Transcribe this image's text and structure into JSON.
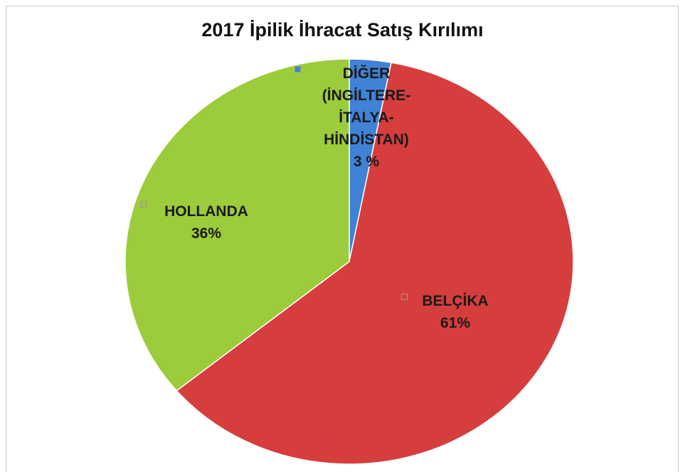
{
  "chart_data": {
    "type": "pie",
    "title": "2017 İpilik İhracat Satış Kırılımı",
    "categories": [
      "DİĞER (İNGİLTERE-İTALYA-HİNDİSTAN)",
      "BELÇİKA",
      "HOLLANDA"
    ],
    "values": [
      3,
      61,
      36
    ],
    "value_labels": [
      "3 %",
      "61%",
      "36%"
    ],
    "colors": [
      "#3f82d6",
      "#d63d3d",
      "#9ccb3b"
    ]
  }
}
